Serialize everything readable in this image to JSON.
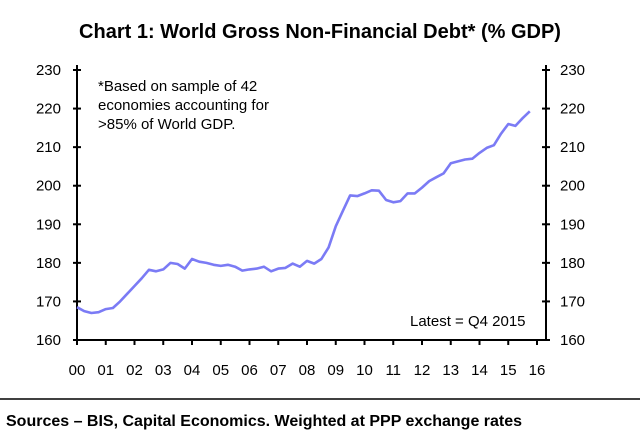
{
  "chart_data": {
    "type": "line",
    "title": "Chart 1: World Gross Non-Financial Debt* (% GDP)",
    "xlabel": "",
    "ylabel": "",
    "ylim": [
      160,
      230
    ],
    "yticks": [
      160,
      170,
      180,
      190,
      200,
      210,
      220,
      230
    ],
    "xtick_labels": [
      "00",
      "01",
      "02",
      "03",
      "04",
      "05",
      "06",
      "07",
      "08",
      "09",
      "10",
      "11",
      "12",
      "13",
      "14",
      "15",
      "16"
    ],
    "grid": false,
    "color": "#7b7bf5",
    "x_start_year": 2000,
    "frequency": "quarterly",
    "series": [
      {
        "name": "World Gross Non-Financial Debt (% GDP)",
        "values": [
          168.5,
          167.5,
          167,
          167.2,
          168,
          168.3,
          170,
          172,
          174,
          176,
          178.2,
          177.8,
          178.3,
          180,
          179.7,
          178.5,
          181,
          180.3,
          180,
          179.5,
          179.2,
          179.5,
          179,
          178,
          178.3,
          178.5,
          179,
          177.8,
          178.5,
          178.7,
          179.8,
          179,
          180.5,
          179.8,
          181,
          184,
          189.5,
          193.5,
          197.5,
          197.3,
          198,
          198.8,
          198.7,
          196.3,
          195.7,
          196,
          198,
          198,
          199.5,
          201.2,
          202.2,
          203.2,
          205.8,
          206.3,
          206.8,
          207,
          208.5,
          209.8,
          210.5,
          213.5,
          216,
          215.5,
          217.5,
          219.3
        ]
      }
    ],
    "annotations": {
      "note": [
        "*Based on sample of 42",
        "economies accounting for",
        ">85% of World GDP."
      ],
      "latest": "Latest = Q4 2015"
    },
    "source": "Sources – BIS, Capital Economics. Weighted at PPP exchange rates"
  }
}
